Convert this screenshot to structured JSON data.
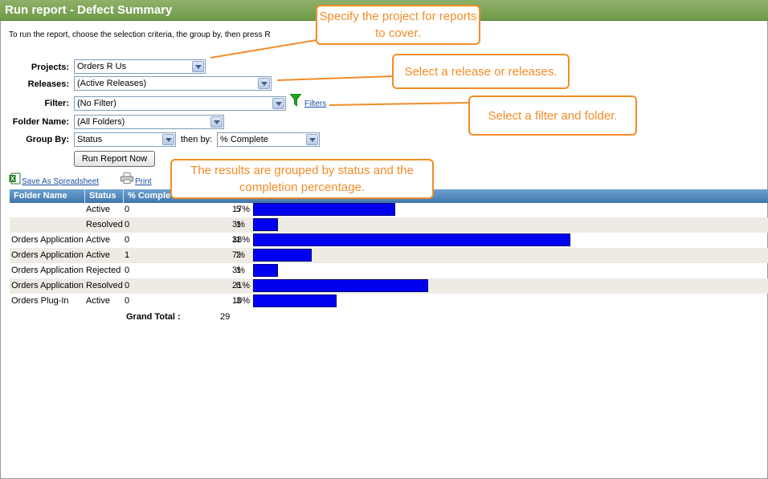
{
  "window": {
    "title": "Run report - Defect Summary"
  },
  "intro_text": "To run the report, choose the selection criteria, the group by, then press R",
  "form": {
    "projects_label": "Projects:",
    "projects_value": "Orders R Us",
    "releases_label": "Releases:",
    "releases_value": "(Active Releases)",
    "filter_label": "Filter:",
    "filter_value": "(No Filter)",
    "filters_link": "Filters",
    "folder_label": "Folder Name:",
    "folder_value": "(All Folders)",
    "groupby_label": "Group By:",
    "groupby_value": "Status",
    "thenby_label": "then by:",
    "thenby_value": "% Complete",
    "run_button": "Run Report Now"
  },
  "actions": {
    "save_spreadsheet": "Save As Spreadsheet",
    "print": "Print"
  },
  "table": {
    "headers": {
      "folder": "Folder Name",
      "status": "Status",
      "complete": "% Comple"
    },
    "rows": [
      {
        "folder": "",
        "status": "Active",
        "complete": "0",
        "count": "5",
        "pct": "17%",
        "fraction": 0.17
      },
      {
        "folder": "",
        "status": "Resolved",
        "complete": "0",
        "count": "1",
        "pct": "3%",
        "fraction": 0.03
      },
      {
        "folder": "Orders Application",
        "status": "Active",
        "complete": "0",
        "count": "11",
        "pct": "38%",
        "fraction": 0.38
      },
      {
        "folder": "Orders Application",
        "status": "Active",
        "complete": "1",
        "count": "2",
        "pct": "7%",
        "fraction": 0.07
      },
      {
        "folder": "Orders Application",
        "status": "Rejected",
        "complete": "0",
        "count": "1",
        "pct": "3%",
        "fraction": 0.03
      },
      {
        "folder": "Orders Application",
        "status": "Resolved",
        "complete": "0",
        "count": "6",
        "pct": "21%",
        "fraction": 0.21
      },
      {
        "folder": "Orders Plug-In",
        "status": "Active",
        "complete": "0",
        "count": "3",
        "pct": "10%",
        "fraction": 0.1
      }
    ],
    "grand_total_label": "Grand Total :",
    "grand_total_value": "29"
  },
  "callouts": {
    "project": "Specify the project for reports to cover.",
    "release": "Select a release or releases.",
    "filter": "Select a filter and folder.",
    "grouping": "The results are grouped by status and the completion percentage."
  },
  "colors": {
    "title_bar": "#7aa352",
    "bar": "#0000f0",
    "callout": "#f28c28",
    "header": "#4f86bb"
  },
  "icons": {
    "funnel": "funnel-icon",
    "spreadsheet": "excel-icon",
    "print": "printer-icon"
  }
}
